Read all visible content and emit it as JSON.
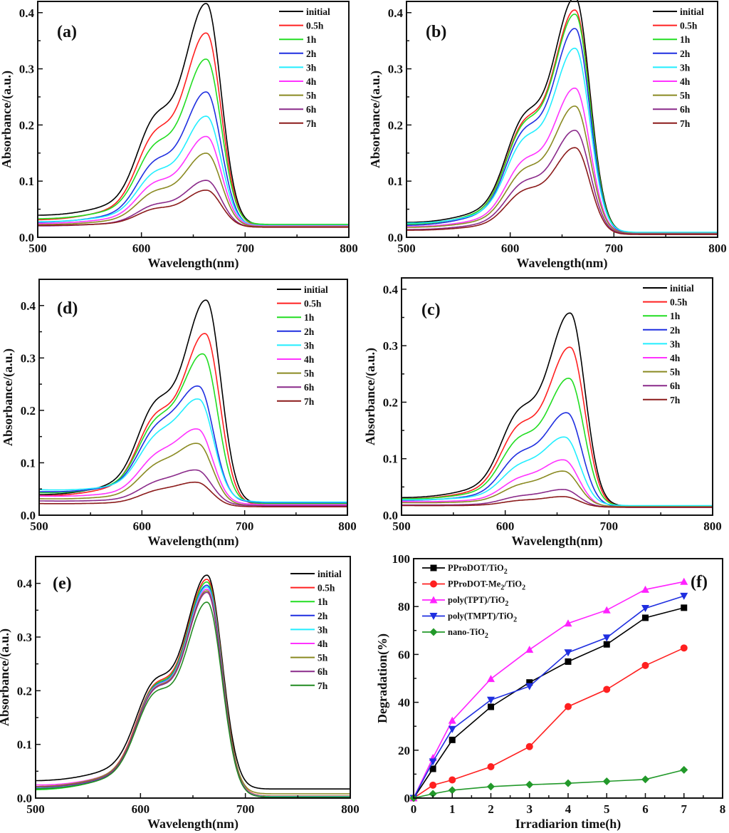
{
  "figure": {
    "panels_order": [
      "a",
      "b",
      "d",
      "c",
      "e",
      "f"
    ]
  },
  "legend_labels": [
    "initial",
    "0.5h",
    "1h",
    "2h",
    "3h",
    "4h",
    "5h",
    "6h",
    "7h"
  ],
  "spectra_colors": {
    "initial": "#000000",
    "0.5h": "#ff2020",
    "1h": "#22dd22",
    "2h": "#1f2fe0",
    "3h": "#22eeff",
    "4h": "#ff33ff",
    "5h": "#8a8a22",
    "6h": "#8a2a8a",
    "7h": "#8b1a1a"
  },
  "spectra_colors_e": {
    "initial": "#000000",
    "0.5h": "#ff2020",
    "1h": "#22dd22",
    "2h": "#1f2fe0",
    "3h": "#22eeff",
    "4h": "#ff33ff",
    "5h": "#8a8a22",
    "6h": "#8a2a8a",
    "7h": "#228b22"
  },
  "chart_data": [
    {
      "id": "a",
      "type": "line",
      "panel_label": "(a)",
      "xlabel": "Wavelength(nm)",
      "ylabel": "Absorbance/(a.u.)",
      "xlim": [
        500,
        800
      ],
      "ylim": [
        0,
        0.42
      ],
      "xticks": [
        500,
        600,
        700,
        800
      ],
      "yticks": [
        "0.0",
        "0.1",
        "0.2",
        "0.3",
        "0.4"
      ],
      "ytick_values": [
        0,
        0.1,
        0.2,
        0.3,
        0.4
      ],
      "legend_position": "top-right",
      "peak_wavelength": 663,
      "series": [
        {
          "name": "initial",
          "peak": 0.405,
          "shoulder": 0.21,
          "base_left": 0.038,
          "base_right": 0.022
        },
        {
          "name": "0.5h",
          "peak": 0.354,
          "shoulder": 0.182,
          "base_left": 0.03,
          "base_right": 0.021
        },
        {
          "name": "1h",
          "peak": 0.309,
          "shoulder": 0.16,
          "base_left": 0.032,
          "base_right": 0.023
        },
        {
          "name": "2h",
          "peak": 0.252,
          "shoulder": 0.132,
          "base_left": 0.026,
          "base_right": 0.02
        },
        {
          "name": "3h",
          "peak": 0.21,
          "shoulder": 0.113,
          "base_left": 0.027,
          "base_right": 0.021
        },
        {
          "name": "4h",
          "peak": 0.175,
          "shoulder": 0.095,
          "base_left": 0.024,
          "base_right": 0.02
        },
        {
          "name": "5h",
          "peak": 0.146,
          "shoulder": 0.08,
          "base_left": 0.022,
          "base_right": 0.019
        },
        {
          "name": "6h",
          "peak": 0.099,
          "shoulder": 0.057,
          "base_left": 0.02,
          "base_right": 0.018
        },
        {
          "name": "7h",
          "peak": 0.082,
          "shoulder": 0.05,
          "base_left": 0.021,
          "base_right": 0.018
        }
      ]
    },
    {
      "id": "b",
      "type": "line",
      "panel_label": "(b)",
      "xlabel": "Wavelength(nm)",
      "ylabel": "Absorbance/(a.u.)",
      "xlim": [
        500,
        800
      ],
      "ylim": [
        0,
        0.42
      ],
      "xticks": [
        500,
        600,
        700,
        800
      ],
      "yticks": [
        "0.0",
        "0.1",
        "0.2",
        "0.3",
        "0.4"
      ],
      "ytick_values": [
        0,
        0.1,
        0.2,
        0.3,
        0.4
      ],
      "legend_position": "top-right",
      "peak_wavelength": 663,
      "series": [
        {
          "name": "initial",
          "peak": 0.415,
          "shoulder": 0.21,
          "base_left": 0.025,
          "base_right": 0.008
        },
        {
          "name": "0.5h",
          "peak": 0.393,
          "shoulder": 0.2,
          "base_left": 0.022,
          "base_right": 0.006
        },
        {
          "name": "1h",
          "peak": 0.386,
          "shoulder": 0.196,
          "base_left": 0.022,
          "base_right": 0.008
        },
        {
          "name": "2h",
          "peak": 0.361,
          "shoulder": 0.185,
          "base_left": 0.02,
          "base_right": 0.007
        },
        {
          "name": "3h",
          "peak": 0.327,
          "shoulder": 0.17,
          "base_left": 0.024,
          "base_right": 0.009
        },
        {
          "name": "4h",
          "peak": 0.258,
          "shoulder": 0.133,
          "base_left": 0.018,
          "base_right": 0.007
        },
        {
          "name": "5h",
          "peak": 0.227,
          "shoulder": 0.117,
          "base_left": 0.017,
          "base_right": 0.007
        },
        {
          "name": "6h",
          "peak": 0.185,
          "shoulder": 0.096,
          "base_left": 0.013,
          "base_right": 0.006
        },
        {
          "name": "7h",
          "peak": 0.155,
          "shoulder": 0.081,
          "base_left": 0.012,
          "base_right": 0.005
        }
      ]
    },
    {
      "id": "d",
      "type": "line",
      "panel_label": "(d)",
      "xlabel": "Wavelength(nm)",
      "ylabel": "Absorbance/(a.u.)",
      "xlim": [
        500,
        800
      ],
      "ylim": [
        0,
        0.45
      ],
      "xticks": [
        500,
        600,
        700,
        800
      ],
      "yticks": [
        "0.0",
        "0.1",
        "0.2",
        "0.3",
        "0.4"
      ],
      "ytick_values": [
        0,
        0.1,
        0.2,
        0.3,
        0.4
      ],
      "legend_position": "top-right",
      "peak_wavelength": 660,
      "series": [
        {
          "name": "initial",
          "peak": 0.399,
          "shoulder": 0.21,
          "base_left": 0.038,
          "base_right": 0.022,
          "peak_x": 663
        },
        {
          "name": "0.5h",
          "peak": 0.336,
          "shoulder": 0.185,
          "base_left": 0.036,
          "base_right": 0.02,
          "peak_x": 662
        },
        {
          "name": "1h",
          "peak": 0.297,
          "shoulder": 0.172,
          "base_left": 0.042,
          "base_right": 0.022,
          "peak_x": 660
        },
        {
          "name": "2h",
          "peak": 0.234,
          "shoulder": 0.155,
          "base_left": 0.044,
          "base_right": 0.024,
          "peak_x": 656
        },
        {
          "name": "3h",
          "peak": 0.211,
          "shoulder": 0.14,
          "base_left": 0.048,
          "base_right": 0.025,
          "peak_x": 656
        },
        {
          "name": "4h",
          "peak": 0.156,
          "shoulder": 0.105,
          "base_left": 0.036,
          "base_right": 0.02,
          "peak_x": 655
        },
        {
          "name": "5h",
          "peak": 0.13,
          "shoulder": 0.088,
          "base_left": 0.031,
          "base_right": 0.018,
          "peak_x": 655
        },
        {
          "name": "6h",
          "peak": 0.082,
          "shoulder": 0.058,
          "base_left": 0.027,
          "base_right": 0.018,
          "peak_x": 654
        },
        {
          "name": "7h",
          "peak": 0.06,
          "shoulder": 0.043,
          "base_left": 0.022,
          "base_right": 0.016,
          "peak_x": 654
        }
      ]
    },
    {
      "id": "c",
      "type": "line",
      "panel_label": "(c)",
      "xlabel": "Wavelength(nm)",
      "ylabel": "Absorbance/(a.u.)",
      "xlim": [
        500,
        800
      ],
      "ylim": [
        0,
        0.42
      ],
      "xticks": [
        500,
        600,
        700,
        800
      ],
      "yticks": [
        "0.0",
        "0.1",
        "0.2",
        "0.3",
        "0.4"
      ],
      "ytick_values": [
        0,
        0.1,
        0.2,
        0.3,
        0.4
      ],
      "legend_position": "top-right",
      "peak_wavelength": 662,
      "series": [
        {
          "name": "initial",
          "peak": 0.348,
          "shoulder": 0.18,
          "base_left": 0.03,
          "base_right": 0.016,
          "peak_x": 663
        },
        {
          "name": "0.5h",
          "peak": 0.289,
          "shoulder": 0.155,
          "base_left": 0.028,
          "base_right": 0.015,
          "peak_x": 663
        },
        {
          "name": "1h",
          "peak": 0.235,
          "shoulder": 0.132,
          "base_left": 0.028,
          "base_right": 0.016,
          "peak_x": 662
        },
        {
          "name": "2h",
          "peak": 0.175,
          "shoulder": 0.104,
          "base_left": 0.026,
          "base_right": 0.015,
          "peak_x": 660
        },
        {
          "name": "3h",
          "peak": 0.133,
          "shoulder": 0.083,
          "base_left": 0.027,
          "base_right": 0.017,
          "peak_x": 658
        },
        {
          "name": "4h",
          "peak": 0.094,
          "shoulder": 0.061,
          "base_left": 0.024,
          "base_right": 0.014,
          "peak_x": 657
        },
        {
          "name": "5h",
          "peak": 0.075,
          "shoulder": 0.05,
          "base_left": 0.022,
          "base_right": 0.015,
          "peak_x": 657
        },
        {
          "name": "6h",
          "peak": 0.044,
          "shoulder": 0.032,
          "base_left": 0.018,
          "base_right": 0.014,
          "peak_x": 657
        },
        {
          "name": "7h",
          "peak": 0.032,
          "shoulder": 0.025,
          "base_left": 0.017,
          "base_right": 0.014,
          "peak_x": 657
        }
      ]
    },
    {
      "id": "e",
      "type": "line",
      "panel_label": "(e)",
      "xlabel": "Wavelength(nm)",
      "ylabel": "Absorbance/(a.u.)",
      "xlim": [
        500,
        800
      ],
      "ylim": [
        0,
        0.45
      ],
      "xticks": [
        500,
        600,
        700,
        800
      ],
      "yticks": [
        "0.0",
        "0.1",
        "0.2",
        "0.3",
        "0.4"
      ],
      "ytick_values": [
        0,
        0.1,
        0.2,
        0.3,
        0.4
      ],
      "legend_position": "top-right",
      "peak_wavelength": 664,
      "series": [
        {
          "name": "initial",
          "peak": 0.404,
          "shoulder": 0.215,
          "base_left": 0.031,
          "base_right": 0.017
        },
        {
          "name": "0.5h",
          "peak": 0.396,
          "shoulder": 0.207,
          "base_left": 0.02,
          "base_right": 0.004
        },
        {
          "name": "1h",
          "peak": 0.391,
          "shoulder": 0.205,
          "base_left": 0.014,
          "base_right": 0.003
        },
        {
          "name": "2h",
          "peak": 0.385,
          "shoulder": 0.203,
          "base_left": 0.016,
          "base_right": 0.002
        },
        {
          "name": "3h",
          "peak": 0.382,
          "shoulder": 0.202,
          "base_left": 0.018,
          "base_right": 0.003
        },
        {
          "name": "4h",
          "peak": 0.378,
          "shoulder": 0.201,
          "base_left": 0.023,
          "base_right": 0.002
        },
        {
          "name": "5h",
          "peak": 0.375,
          "shoulder": 0.2,
          "base_left": 0.02,
          "base_right": 0.008
        },
        {
          "name": "6h",
          "peak": 0.372,
          "shoulder": 0.199,
          "base_left": 0.019,
          "base_right": 0.002
        },
        {
          "name": "7h",
          "peak": 0.354,
          "shoulder": 0.193,
          "base_left": 0.016,
          "base_right": 0.002
        }
      ]
    },
    {
      "id": "f",
      "type": "line",
      "panel_label": "(f)",
      "xlabel": "Irradiarion time(h)",
      "ylabel": "Degradation(%)",
      "xlim": [
        0,
        8
      ],
      "ylim": [
        0,
        100
      ],
      "xticks": [
        0,
        1,
        2,
        3,
        4,
        5,
        6,
        7,
        8
      ],
      "yticks": [
        "0",
        "20",
        "40",
        "60",
        "80",
        "100"
      ],
      "ytick_values": [
        0,
        20,
        40,
        60,
        80,
        100
      ],
      "legend_position": "top-left",
      "x": [
        0,
        0.5,
        1,
        2,
        3,
        4,
        5,
        6,
        7
      ],
      "series": [
        {
          "name": "PProDOT/TiO",
          "sub": "2",
          "color": "#000000",
          "marker": "square",
          "values": [
            0,
            12.2,
            24.3,
            38.1,
            48.3,
            57.0,
            64.2,
            75.3,
            79.5
          ]
        },
        {
          "name": "PProDOT-Me",
          "sub": "2",
          "suffix": "/TiO",
          "sub2": "2",
          "color": "#ff2020",
          "marker": "circle",
          "values": [
            0,
            5.4,
            7.6,
            13.1,
            21.5,
            38.2,
            45.4,
            55.4,
            62.7
          ]
        },
        {
          "name": "poly(TPT)/TiO",
          "sub": "2",
          "color": "#ff22ff",
          "marker": "triangle-up",
          "values": [
            0,
            16.8,
            32.4,
            49.8,
            62.0,
            73.0,
            78.5,
            87.1,
            90.4
          ]
        },
        {
          "name": "poly(TMPT)/TiO",
          "sub": "2",
          "color": "#1f2fe0",
          "marker": "triangle-down",
          "values": [
            0,
            15.2,
            28.8,
            41.0,
            46.7,
            60.8,
            67.0,
            79.3,
            84.4
          ]
        },
        {
          "name": "nano-TiO",
          "sub": "2",
          "color": "#22992a",
          "marker": "diamond",
          "values": [
            0,
            1.8,
            3.3,
            4.8,
            5.6,
            6.2,
            7.0,
            7.8,
            11.8
          ]
        }
      ]
    }
  ]
}
